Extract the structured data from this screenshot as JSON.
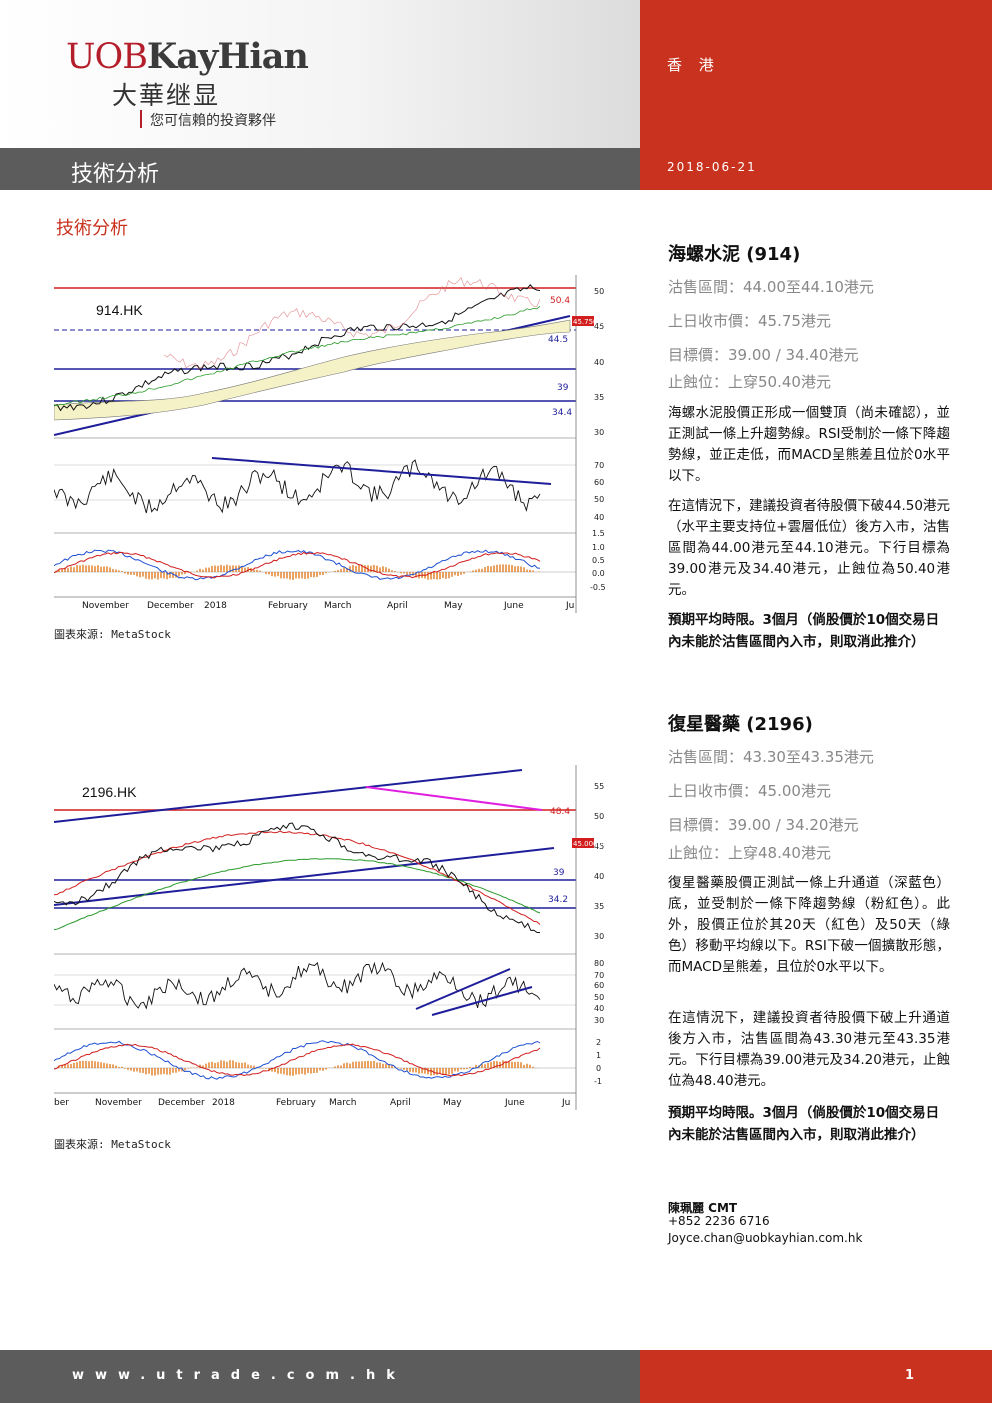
{
  "header": {
    "logo_en_a": "UOB",
    "logo_en_b": "KayHian",
    "logo_cn": "大華继显",
    "logo_slogan": "您可信賴的投資夥伴",
    "region": "香 港",
    "section_title": "技術分析",
    "date": "2018-06-21"
  },
  "main_title": "技術分析",
  "source_label": "圖表來源: MetaStock",
  "stocks": [
    {
      "title": "海螺水泥  (914)",
      "sell_range": "沽售區間：44.00至44.10港元",
      "prev_close": "上日收市價：45.75港元",
      "target": "目標價：39.00 / 34.40港元",
      "stop": "止蝕位：上穿50.40港元",
      "para1": "海螺水泥股價正形成一個雙頂（尚未確認），並正測試一條上升趨勢線。RSI受制於一條下降趨勢線，並正走低，而MACD呈熊差且位於0水平以下。",
      "para2": "在這情況下，建議投資者待股價下破44.50港元（水平主要支持位+雲層低位）後方入市，沽售區間為44.00港元至44.10港元。下行目標為39.00港元及34.40港元，止蝕位為50.40港元。",
      "para3": "預期平均時限。3個月（倘股價於10個交易日內未能於沽售區間內入市，則取消此推介）"
    },
    {
      "title": "復星醫藥  (2196)",
      "sell_range": "沽售區間：43.30至43.35港元",
      "prev_close": "上日收市價：45.00港元",
      "target": "目標價：39.00 / 34.20港元",
      "stop": "止蝕位：上穿48.40港元",
      "para1": "復星醫藥股價正測試一條上升通道（深藍色）底，並受制於一條下降趨勢線（粉紅色）。此外，股價正位於其20天（紅色）及50天（綠色）移動平均線以下。RSI下破一個擴散形態，而MACD呈熊差，且位於0水平以下。",
      "para2": "在這情況下，建議投資者待股價下破上升通道後方入市，沽售區間為43.30港元至43.35港元。下行目標為39.00港元及34.20港元，止蝕位為48.40港元。",
      "para3": "預期平均時限。3個月（倘股價於10個交易日內未能於沽售區間內入市，則取消此推介）"
    }
  ],
  "contact": {
    "name": "陳珮麗    CMT",
    "phone": "+852 2236 6716",
    "email": "Joyce.chan@uobkayhian.com.hk"
  },
  "footer": {
    "url": "www.utrade.com.hk",
    "page": "1"
  },
  "chart_data": [
    {
      "type": "line",
      "title": "914.HK",
      "months": [
        "November",
        "December",
        "2018",
        "February",
        "March",
        "April",
        "May",
        "June",
        "Ju"
      ],
      "price_axis": [
        30,
        35,
        40,
        45,
        50
      ],
      "levels": [
        "50.4",
        "45.7500",
        "44.5",
        "39",
        "34.4"
      ],
      "level_values": [
        50.4,
        45.75,
        44.5,
        39,
        34.4
      ],
      "rsi_axis": [
        40,
        50,
        60,
        70
      ],
      "macd_axis": [
        "1.5",
        "1.0",
        "0.5",
        "0.0",
        "-0.5"
      ],
      "colors": {
        "resistance": "#d21e1e",
        "support": "#1e1e9a",
        "trend": "#1e1e9a"
      }
    },
    {
      "type": "line",
      "title": "2196.HK",
      "months": [
        "ber",
        "November",
        "December",
        "2018",
        "February",
        "March",
        "April",
        "May",
        "June",
        "Ju"
      ],
      "price_axis": [
        30,
        35,
        40,
        45,
        50,
        55
      ],
      "levels": [
        "48.4",
        "45.0000",
        "39",
        "34.2"
      ],
      "level_values": [
        48.4,
        45.0,
        39,
        34.2
      ],
      "rsi_axis": [
        30,
        40,
        50,
        60,
        70,
        80
      ],
      "macd_axis": [
        "2",
        "1",
        "0",
        "-1"
      ],
      "colors": {
        "resistance": "#d21e1e",
        "support": "#1e1e9a",
        "downtrend": "#e020e0"
      }
    }
  ]
}
